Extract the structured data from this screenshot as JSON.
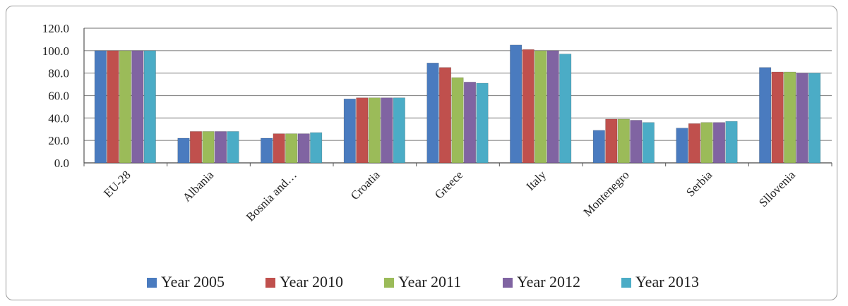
{
  "chart_data": {
    "type": "bar",
    "title": "",
    "xlabel": "",
    "ylabel": "",
    "ylim": [
      0,
      120
    ],
    "yticks": [
      "0.0",
      "20.0",
      "40.0",
      "60.0",
      "80.0",
      "100.0",
      "120.0"
    ],
    "grid": true,
    "legend_position": "bottom",
    "categories": [
      "EU-28",
      "Albania",
      "Bosnia and…",
      "Croatia",
      "Greece",
      "Italy",
      "Montenegro",
      "Serbia",
      "Sllovenia"
    ],
    "series": [
      {
        "name": "Year 2005",
        "color": "#4a7bbf",
        "values": [
          100,
          22,
          22,
          57,
          89,
          105,
          29,
          31,
          85
        ]
      },
      {
        "name": "Year 2010",
        "color": "#c0504d",
        "values": [
          100,
          28,
          26,
          58,
          85,
          101,
          39,
          35,
          81
        ]
      },
      {
        "name": "Year 2011",
        "color": "#9bbb59",
        "values": [
          100,
          28,
          26,
          58,
          76,
          100,
          39,
          36,
          81
        ]
      },
      {
        "name": "Year 2012",
        "color": "#8064a2",
        "values": [
          100,
          28,
          26,
          58,
          72,
          100,
          38,
          36,
          80
        ]
      },
      {
        "name": "Year 2013",
        "color": "#4bacc6",
        "values": [
          100,
          28,
          27,
          58,
          71,
          97,
          36,
          37,
          80
        ]
      }
    ]
  }
}
